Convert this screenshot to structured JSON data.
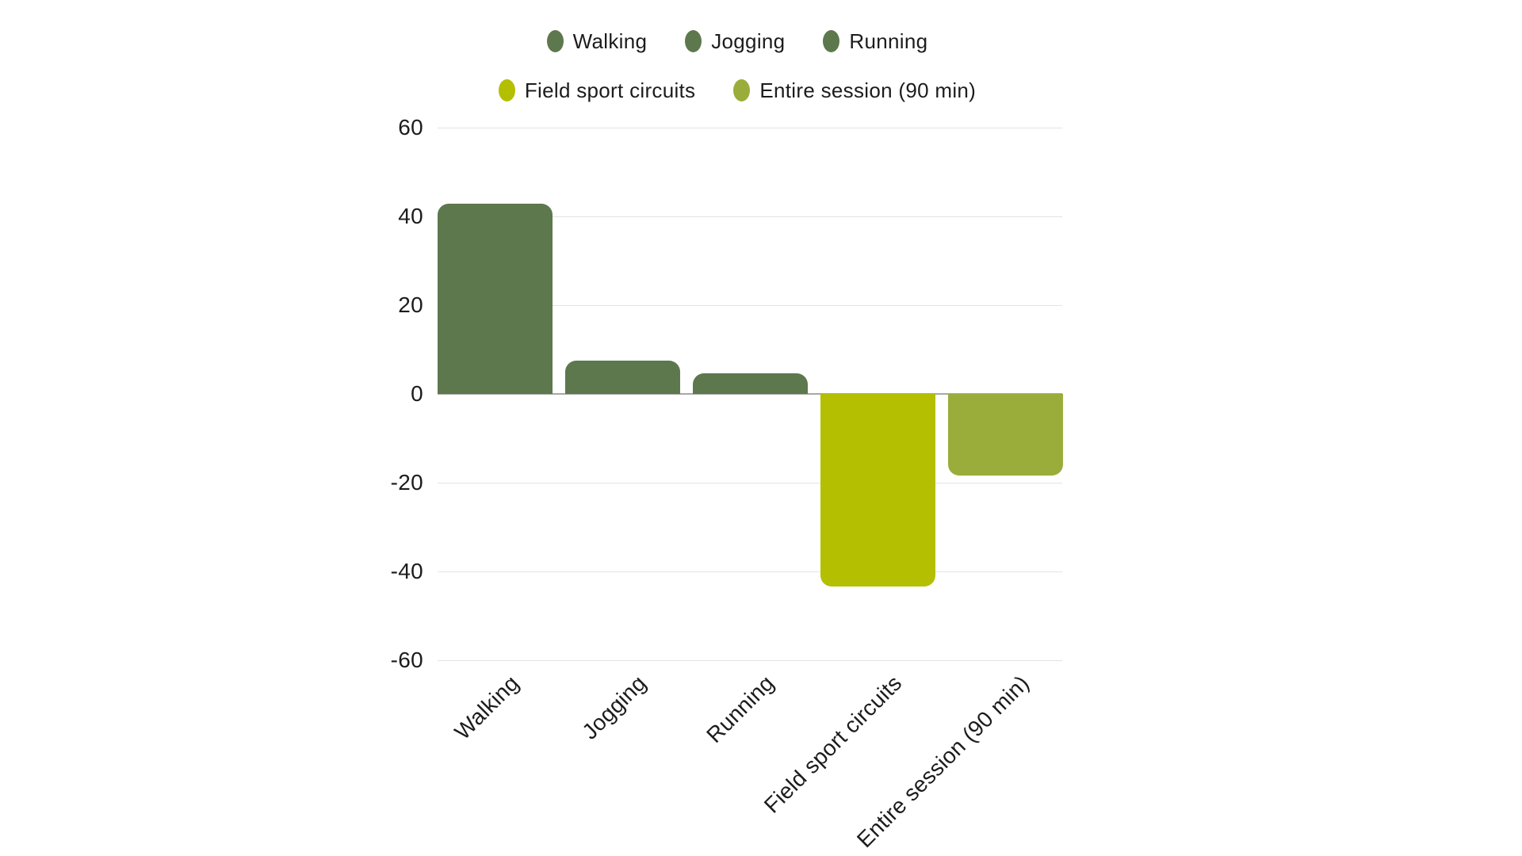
{
  "chart_data": {
    "type": "bar",
    "title": "",
    "xlabel": "",
    "ylabel": "",
    "categories": [
      "Walking",
      "Jogging",
      "Running",
      "Field sport circuits",
      "Entire session (90 min)"
    ],
    "values": [
      42.8,
      7.5,
      4.6,
      -43.4,
      -18.4
    ],
    "bar_colors": [
      "#5d784d",
      "#5d784d",
      "#5d784d",
      "#b4bf01",
      "#9aad3b"
    ],
    "ylim": [
      -60,
      60
    ],
    "yticks": [
      60,
      40,
      20,
      0,
      -20,
      -40,
      -60
    ],
    "grid": true,
    "legend_position": "top",
    "legend": {
      "rows": [
        [
          {
            "label": "Walking",
            "color": "#5d784d"
          },
          {
            "label": "Jogging",
            "color": "#5d784d"
          },
          {
            "label": "Running",
            "color": "#5d784d"
          }
        ],
        [
          {
            "label": "Field sport circuits",
            "color": "#b4bf01"
          },
          {
            "label": "Entire session (90 min)",
            "color": "#9aad3b"
          }
        ]
      ]
    }
  },
  "colors": {
    "background": "#ffffff",
    "text": "#1c1c1c",
    "grid": "#e3e3e3",
    "zero_line": "#a8a8a8",
    "series_green": "#5d784d",
    "series_chartreuse": "#b4bf01",
    "series_olive": "#9aad3b"
  }
}
